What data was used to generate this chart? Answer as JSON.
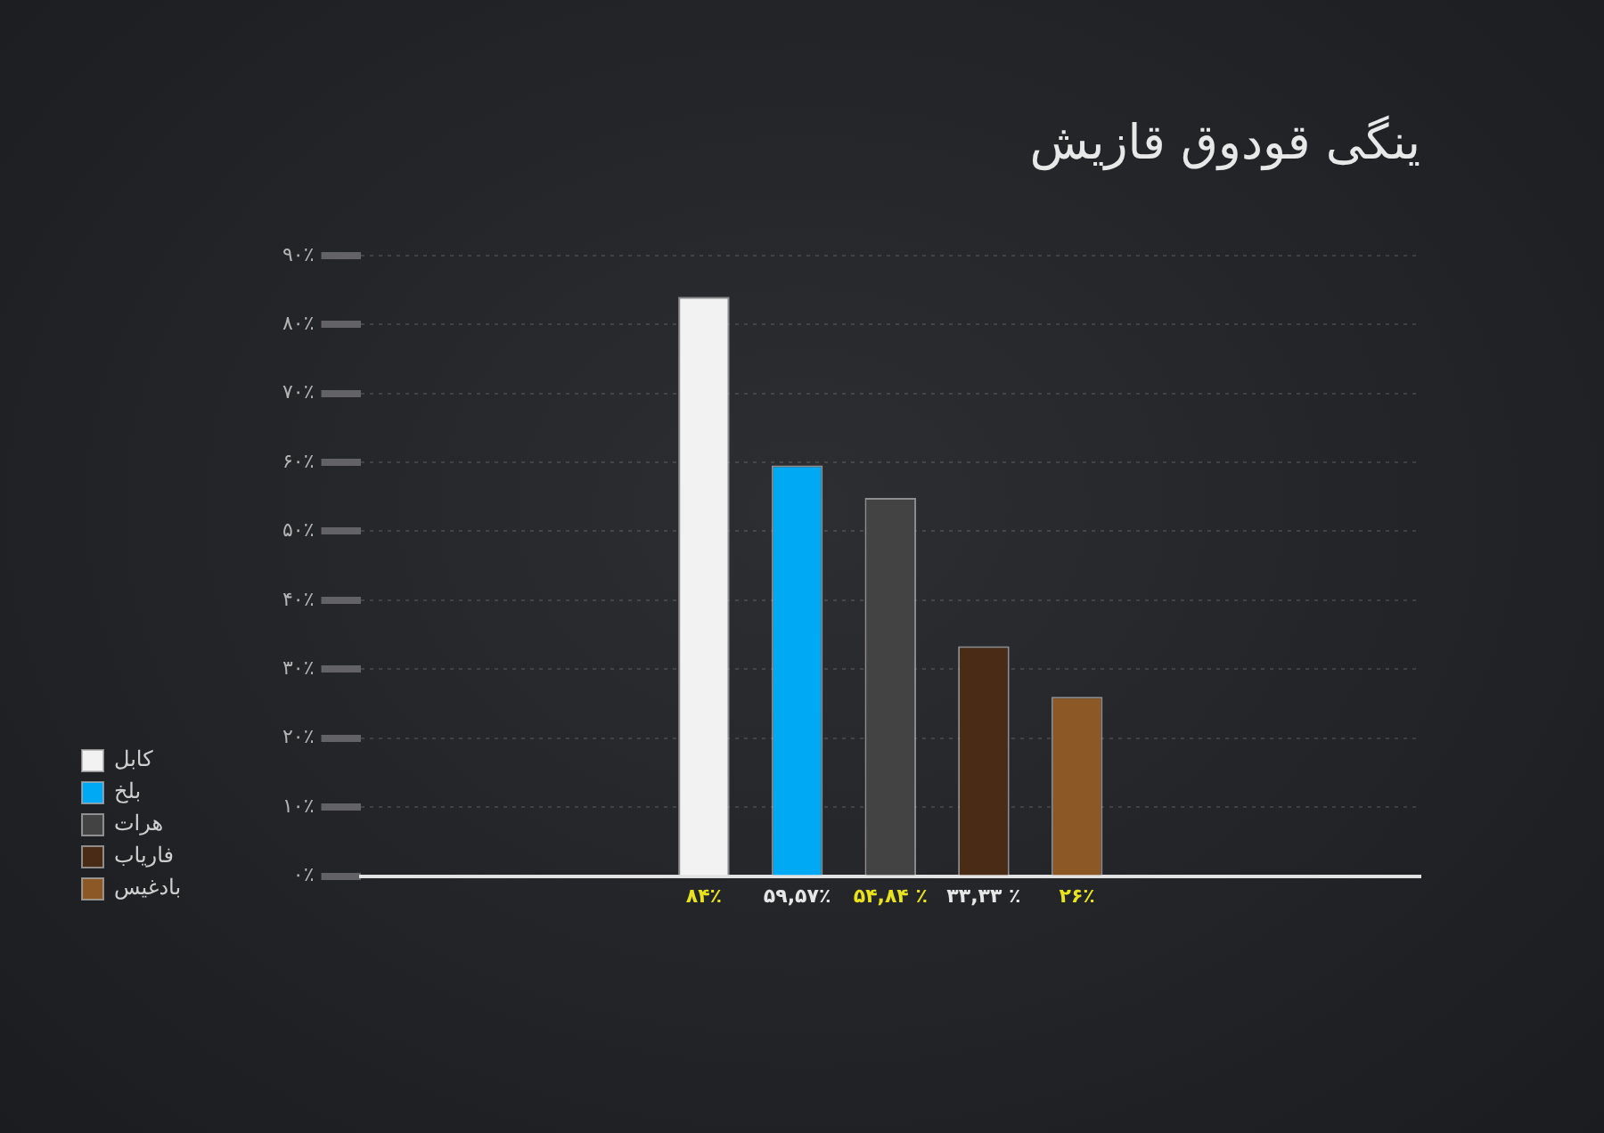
{
  "chart_data": {
    "type": "bar",
    "title": "ینگی قودوق قازیش",
    "categories": [
      null
    ],
    "series": [
      {
        "name": "کابل",
        "color": "#f2f2f2",
        "values": [
          84
        ],
        "value_labels": [
          "۸۴٪"
        ]
      },
      {
        "name": "بلخ",
        "color": "#00a9f4",
        "values": [
          59.57
        ],
        "value_labels": [
          "۵۹,۵۷٪"
        ]
      },
      {
        "name": "هرات",
        "color": "#434343",
        "values": [
          54.84
        ],
        "value_labels": [
          "۵۴,۸۴ ٪"
        ]
      },
      {
        "name": "فاریاب",
        "color": "#4a2b16",
        "values": [
          33.33
        ],
        "value_labels": [
          "۳۳,۳۳ ٪"
        ]
      },
      {
        "name": "بادغیس",
        "color": "#8c5826",
        "values": [
          26
        ],
        "value_labels": [
          "۲۶٪"
        ]
      }
    ],
    "ylim": [
      0,
      90
    ],
    "yticks": [
      {
        "value": 0,
        "label": "۰٪"
      },
      {
        "value": 10,
        "label": "۱۰٪"
      },
      {
        "value": 20,
        "label": "۲۰٪"
      },
      {
        "value": 30,
        "label": "۳۰٪"
      },
      {
        "value": 40,
        "label": "۴۰٪"
      },
      {
        "value": 50,
        "label": "۵۰٪"
      },
      {
        "value": 60,
        "label": "۶۰٪"
      },
      {
        "value": 70,
        "label": "۷۰٪"
      },
      {
        "value": 80,
        "label": "۸۰٪"
      },
      {
        "value": 90,
        "label": "۹۰٪"
      }
    ],
    "grid": "y",
    "legend": "left"
  }
}
